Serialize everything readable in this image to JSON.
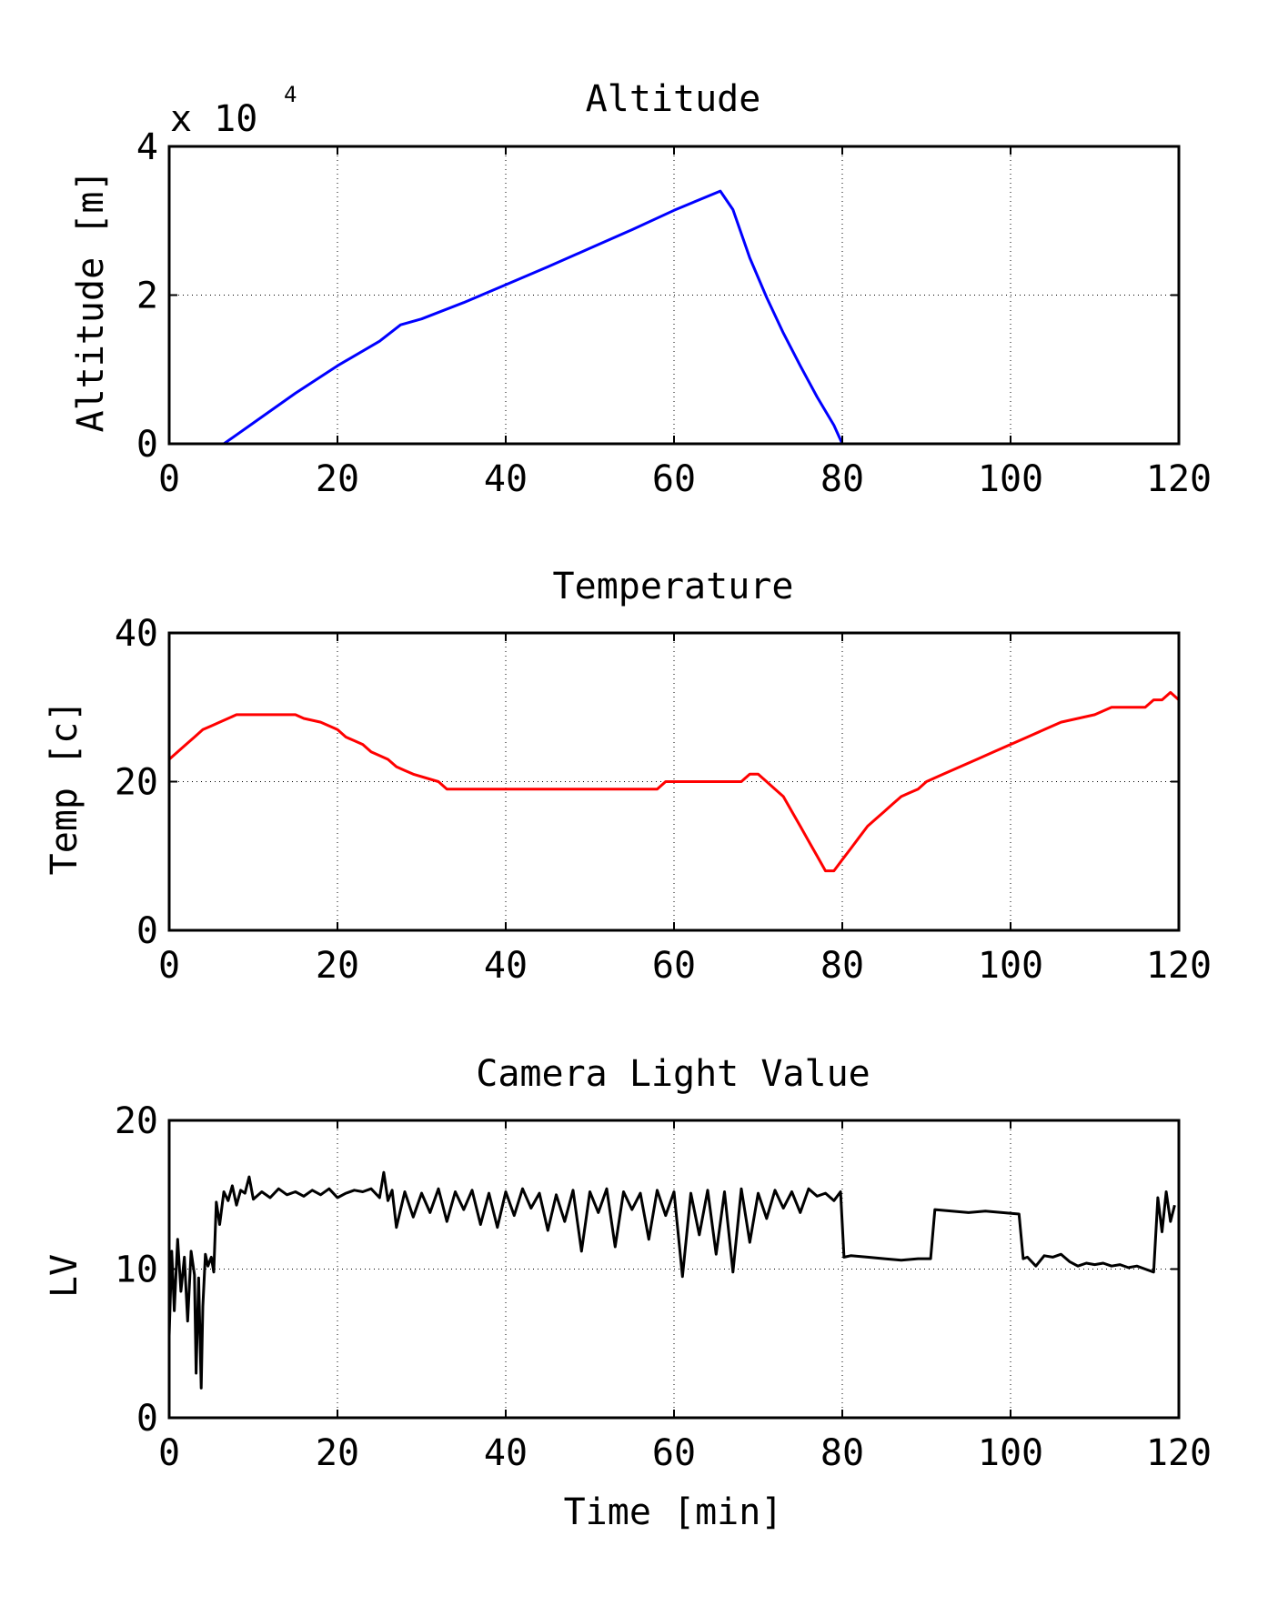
{
  "chart_data": [
    {
      "type": "line",
      "title": "Altitude",
      "ylabel": "Altitude [m]",
      "xlabel": "",
      "y_multiplier": {
        "base": "x 10",
        "exponent": "4"
      },
      "xlim": [
        0,
        120
      ],
      "ylim": [
        0,
        40000
      ],
      "xticks": [
        "0",
        "20",
        "40",
        "60",
        "80",
        "100",
        "120"
      ],
      "yticks": [
        "0",
        "2",
        "4"
      ],
      "grid": true,
      "color": "#0000ff",
      "series": [
        {
          "x": [
            0,
            6.5,
            10,
            15,
            20,
            25,
            27.5,
            30,
            35,
            40,
            45,
            50,
            55,
            60,
            65.5,
            67,
            69,
            71,
            73,
            75,
            77,
            79,
            80,
            90,
            100,
            110,
            119.5
          ],
          "y": [
            0,
            0,
            2800,
            6800,
            10500,
            13800,
            16000,
            16800,
            19000,
            21400,
            23800,
            26300,
            28800,
            31400,
            34000,
            31500,
            25000,
            19700,
            14900,
            10500,
            6300,
            2500,
            0,
            0,
            0,
            0,
            0
          ]
        }
      ]
    },
    {
      "type": "line",
      "title": "Temperature",
      "ylabel": "Temp [c]",
      "xlabel": "",
      "xlim": [
        0,
        120
      ],
      "ylim": [
        0,
        40
      ],
      "xticks": [
        "0",
        "20",
        "40",
        "60",
        "80",
        "100",
        "120"
      ],
      "yticks": [
        "0",
        "20",
        "40"
      ],
      "grid": true,
      "color": "#ff0000",
      "series": [
        {
          "x": [
            0,
            1,
            2,
            3,
            4,
            5,
            6,
            7,
            8,
            15,
            16,
            18,
            20,
            21,
            22,
            23,
            24,
            25,
            26,
            27,
            28,
            29,
            32,
            33,
            58,
            59,
            68,
            69,
            70,
            71,
            72,
            73,
            74,
            75,
            76,
            77,
            78,
            79,
            80,
            81,
            82,
            83,
            84,
            85,
            86,
            87,
            88,
            89,
            90,
            92,
            94,
            96,
            98,
            100,
            102,
            104,
            106,
            108,
            110,
            112,
            116,
            117,
            118,
            119,
            120
          ],
          "y": [
            23,
            24,
            25,
            26,
            27,
            27.5,
            28,
            28.5,
            29,
            29,
            28.5,
            28,
            27,
            26,
            25.5,
            25,
            24,
            23.5,
            23,
            22,
            21.5,
            21,
            20,
            19,
            19,
            20,
            20,
            21,
            21,
            20,
            19,
            18,
            16,
            14,
            12,
            10,
            8,
            8,
            9.5,
            11,
            12.5,
            14,
            15,
            16,
            17,
            18,
            18.5,
            19,
            20,
            21,
            22,
            23,
            24,
            25,
            26,
            27,
            28,
            28.5,
            29,
            30,
            30,
            31,
            31,
            32,
            31
          ]
        }
      ]
    },
    {
      "type": "line",
      "title": "Camera Light Value",
      "ylabel": "LV",
      "xlabel": "Time [min]",
      "xlim": [
        0,
        120
      ],
      "ylim": [
        0,
        20
      ],
      "xticks": [
        "0",
        "20",
        "40",
        "60",
        "80",
        "100",
        "120"
      ],
      "yticks": [
        "0",
        "10",
        "20"
      ],
      "grid": true,
      "color": "#000000",
      "series": [
        {
          "x": [
            0,
            0.3,
            0.6,
            1,
            1.4,
            1.8,
            2.2,
            2.6,
            3,
            3.2,
            3.5,
            3.8,
            4,
            4.3,
            4.6,
            5,
            5.3,
            5.6,
            6,
            6.5,
            7,
            7.5,
            8,
            8.5,
            9,
            9.5,
            10,
            11,
            12,
            13,
            14,
            15,
            16,
            17,
            18,
            19,
            20,
            21,
            22,
            23,
            24,
            25,
            25.5,
            26,
            26.5,
            27,
            28,
            29,
            30,
            31,
            32,
            33,
            34,
            35,
            36,
            37,
            38,
            39,
            40,
            41,
            42,
            43,
            44,
            45,
            46,
            47,
            48,
            49,
            50,
            51,
            52,
            53,
            54,
            55,
            56,
            57,
            58,
            59,
            60,
            61,
            62,
            63,
            64,
            65,
            66,
            67,
            68,
            69,
            70,
            71,
            72,
            73,
            74,
            75,
            76,
            77,
            78,
            79,
            79.8,
            80.2,
            81,
            83,
            85,
            87,
            89,
            90.5,
            91,
            93,
            95,
            97,
            99,
            101,
            101.5,
            102,
            103,
            104,
            105,
            106,
            107,
            108,
            109,
            110,
            111,
            112,
            113,
            114,
            115,
            116,
            117,
            117.5,
            118,
            118.5,
            119,
            119.5
          ],
          "y": [
            5.5,
            11.2,
            7.2,
            12,
            8.5,
            10.8,
            6.5,
            11.2,
            9.6,
            3,
            9.4,
            2,
            7.5,
            11,
            10.2,
            10.8,
            9.8,
            14.5,
            13,
            15.2,
            14.6,
            15.6,
            14.3,
            15.3,
            15.1,
            16.2,
            14.7,
            15.2,
            14.8,
            15.4,
            15,
            15.2,
            14.9,
            15.3,
            15,
            15.4,
            14.8,
            15.1,
            15.3,
            15.2,
            15.4,
            14.8,
            16.5,
            14.6,
            15.3,
            12.8,
            15.2,
            13.5,
            15.1,
            13.8,
            15.4,
            13.2,
            15.2,
            14,
            15.3,
            13,
            15.1,
            12.8,
            15.2,
            13.6,
            15.4,
            14.1,
            15.1,
            12.6,
            15,
            13.2,
            15.3,
            11.2,
            15.2,
            13.8,
            15.4,
            11.5,
            15.2,
            14,
            15.1,
            12,
            15.3,
            13.6,
            15.2,
            9.5,
            15.1,
            12.3,
            15.3,
            11,
            15.2,
            9.8,
            15.4,
            11.8,
            15.1,
            13.4,
            15.3,
            14.1,
            15.2,
            13.8,
            15.4,
            14.9,
            15.1,
            14.6,
            15.2,
            10.8,
            10.9,
            10.8,
            10.7,
            10.6,
            10.7,
            10.7,
            14,
            13.9,
            13.8,
            13.9,
            13.8,
            13.7,
            10.7,
            10.8,
            10.2,
            10.9,
            10.8,
            11,
            10.5,
            10.2,
            10.4,
            10.3,
            10.4,
            10.2,
            10.3,
            10.1,
            10.2,
            10,
            9.8,
            14.8,
            12.5,
            15.2,
            13.2,
            14.3
          ]
        }
      ]
    }
  ]
}
